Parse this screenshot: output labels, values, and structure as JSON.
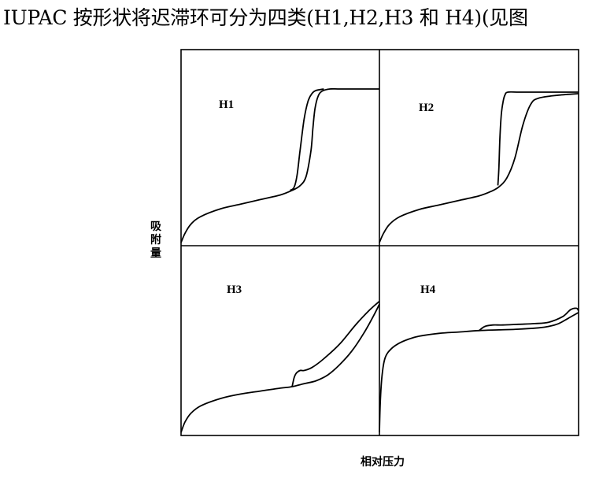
{
  "caption": "IUPAC 按形状将迟滞环可分为四类(H1,H2,H3 和 H4)(见图",
  "chart_data": {
    "type": "line",
    "ylabel": "吸附量",
    "xlabel": "相对压力",
    "xlim": [
      0,
      1
    ],
    "ylim": [
      0,
      1
    ],
    "grid": false,
    "panels": [
      {
        "label": "H1",
        "series": [
          {
            "x": [
              0,
              0.02,
              0.05,
              0.1,
              0.2,
              0.3,
              0.4,
              0.5,
              0.56,
              0.6,
              0.63,
              0.655,
              0.665,
              0.675,
              0.69,
              0.71,
              0.75,
              0.8,
              0.9,
              1.0
            ],
            "y": [
              0.0,
              0.06,
              0.12,
              0.17,
              0.22,
              0.25,
              0.28,
              0.31,
              0.34,
              0.37,
              0.43,
              0.6,
              0.75,
              0.87,
              0.95,
              0.985,
              1.0,
              1.0,
              1.0,
              1.0
            ]
          },
          {
            "x": [
              0.55,
              0.57,
              0.585,
              0.6,
              0.62,
              0.64,
              0.66,
              0.68,
              0.72
            ],
            "y": [
              0.34,
              0.36,
              0.44,
              0.6,
              0.8,
              0.92,
              0.97,
              0.99,
              1.0
            ]
          }
        ]
      },
      {
        "label": "H2",
        "series": [
          {
            "x": [
              0,
              0.02,
              0.05,
              0.1,
              0.2,
              0.3,
              0.4,
              0.5,
              0.56,
              0.6,
              0.64,
              0.68,
              0.72,
              0.76,
              0.8,
              0.9,
              1.0
            ],
            "y": [
              0.0,
              0.06,
              0.12,
              0.17,
              0.22,
              0.25,
              0.28,
              0.31,
              0.34,
              0.37,
              0.43,
              0.56,
              0.78,
              0.92,
              0.96,
              0.98,
              0.99
            ],
            "annotations": []
          },
          {
            "x": [
              0.595,
              0.6,
              0.605,
              0.612,
              0.62,
              0.63,
              0.645,
              0.7,
              0.8,
              1.0
            ],
            "y": [
              0.38,
              0.5,
              0.7,
              0.85,
              0.93,
              0.98,
              1.0,
              1.0,
              1.0,
              1.0
            ]
          }
        ]
      },
      {
        "label": "H3",
        "series": [
          {
            "x": [
              0,
              0.02,
              0.05,
              0.1,
              0.2,
              0.3,
              0.4,
              0.5,
              0.56,
              0.62,
              0.68,
              0.74,
              0.8,
              0.86,
              0.92,
              0.97,
              1.0
            ],
            "y": [
              0.0,
              0.07,
              0.13,
              0.18,
              0.23,
              0.26,
              0.28,
              0.3,
              0.31,
              0.33,
              0.35,
              0.39,
              0.46,
              0.55,
              0.67,
              0.79,
              0.87
            ]
          },
          {
            "x": [
              0.56,
              0.57,
              0.58,
              0.6,
              0.62,
              0.66,
              0.72,
              0.8,
              0.88,
              0.95,
              1.0
            ],
            "y": [
              0.31,
              0.37,
              0.4,
              0.42,
              0.42,
              0.44,
              0.5,
              0.6,
              0.73,
              0.83,
              0.89
            ]
          }
        ]
      },
      {
        "label": "H4",
        "series": [
          {
            "x": [
              0,
              0.005,
              0.015,
              0.03,
              0.06,
              0.1,
              0.15,
              0.2,
              0.3,
              0.4,
              0.5,
              0.6,
              0.7,
              0.8,
              0.85,
              0.9,
              0.95,
              1.0
            ],
            "y": [
              0.0,
              0.24,
              0.43,
              0.54,
              0.6,
              0.64,
              0.67,
              0.69,
              0.71,
              0.72,
              0.73,
              0.735,
              0.74,
              0.75,
              0.76,
              0.78,
              0.82,
              0.86
            ]
          },
          {
            "x": [
              0.5,
              0.53,
              0.57,
              0.62,
              0.7,
              0.78,
              0.85,
              0.92,
              0.96,
              0.99,
              1.0
            ],
            "y": [
              0.73,
              0.76,
              0.77,
              0.77,
              0.775,
              0.78,
              0.79,
              0.83,
              0.88,
              0.89,
              0.87
            ]
          }
        ]
      }
    ]
  }
}
